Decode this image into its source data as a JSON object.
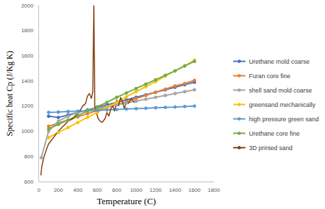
{
  "chart_data": {
    "type": "line",
    "x_label": "Temperature (C)",
    "y_label": "Specific heat Cp (J/Kg K)",
    "xlim": [
      0,
      1800
    ],
    "xticks": [
      0,
      200,
      400,
      600,
      800,
      1000,
      1200,
      1400,
      1600,
      1800
    ],
    "ylim": [
      600,
      2000
    ],
    "yticks": [
      600,
      800,
      1000,
      1200,
      1400,
      1600,
      1800,
      2000
    ],
    "grid": false,
    "legend": "right",
    "series": [
      {
        "name": "Urethane mold coarse",
        "color": "#4472c4",
        "marker": "circle",
        "x": [
          100,
          200,
          300,
          400,
          500,
          600,
          700,
          800,
          900,
          1000,
          1100,
          1200,
          1300,
          1400,
          1500,
          1600
        ],
        "values": [
          1120,
          1110,
          1130,
          1150,
          1170,
          1190,
          1210,
          1230,
          1250,
          1270,
          1290,
          1310,
          1330,
          1350,
          1370,
          1390
        ]
      },
      {
        "name": "Furan core fine",
        "color": "#ed7d31",
        "marker": "circle",
        "x": [
          100,
          200,
          300,
          400,
          500,
          600,
          700,
          800,
          900,
          1000,
          1100,
          1200,
          1300,
          1400,
          1500,
          1600
        ],
        "values": [
          1040,
          1065,
          1090,
          1115,
          1140,
          1165,
          1190,
          1210,
          1235,
          1260,
          1285,
          1310,
          1335,
          1360,
          1380,
          1405
        ]
      },
      {
        "name": "shell sand mold coarse",
        "color": "#a5a5a5",
        "marker": "circle",
        "x": [
          25,
          100,
          200,
          300,
          400,
          500,
          600,
          700,
          800,
          900,
          1000,
          1100,
          1200,
          1300,
          1400,
          1500,
          1600
        ],
        "values": [
          790,
          1000,
          1080,
          1120,
          1150,
          1165,
          1180,
          1195,
          1210,
          1225,
          1240,
          1255,
          1270,
          1285,
          1300,
          1315,
          1330
        ]
      },
      {
        "name": "greensand mechanically",
        "color": "#ffc000",
        "marker": "circle",
        "x": [
          100,
          200,
          300,
          400,
          500,
          600,
          700,
          800,
          900,
          1000,
          1100,
          1200,
          1300,
          1400,
          1500,
          1600
        ],
        "values": [
          950,
          990,
          1030,
          1070,
          1110,
          1150,
          1190,
          1230,
          1275,
          1315,
          1355,
          1395,
          1440,
          1480,
          1520,
          1565
        ]
      },
      {
        "name": "high pressure green sand",
        "color": "#5b9bd5",
        "marker": "circle",
        "x": [
          100,
          200,
          300,
          400,
          500,
          600,
          700,
          800,
          900,
          1000,
          1100,
          1200,
          1300,
          1400,
          1500,
          1600
        ],
        "values": [
          1150,
          1153,
          1157,
          1160,
          1163,
          1167,
          1170,
          1173,
          1177,
          1180,
          1183,
          1187,
          1190,
          1193,
          1197,
          1200
        ]
      },
      {
        "name": "Urethane core fine",
        "color": "#70ad47",
        "marker": "circle",
        "x": [
          100,
          200,
          300,
          400,
          500,
          600,
          700,
          800,
          900,
          1000,
          1100,
          1200,
          1300,
          1400,
          1500,
          1600
        ],
        "values": [
          1020,
          1055,
          1090,
          1125,
          1160,
          1195,
          1230,
          1270,
          1305,
          1340,
          1375,
          1410,
          1445,
          1480,
          1520,
          1555
        ]
      },
      {
        "name": "3D printed sand",
        "color": "#843c0c",
        "marker": "none",
        "x": [
          20,
          30,
          50,
          80,
          100,
          150,
          200,
          250,
          300,
          350,
          380,
          420,
          450,
          480,
          500,
          520,
          540,
          555,
          565,
          575,
          590,
          610,
          630,
          650,
          680,
          700,
          720,
          740,
          760,
          780,
          800,
          820,
          840,
          860,
          880,
          900,
          920,
          950,
          980,
          1000
        ],
        "values": [
          650,
          720,
          790,
          860,
          900,
          950,
          1000,
          1040,
          1080,
          1100,
          1130,
          1160,
          1200,
          1220,
          1280,
          1300,
          1260,
          1320,
          2000,
          1200,
          1150,
          1100,
          1080,
          1070,
          1100,
          1150,
          1120,
          1180,
          1200,
          1160,
          1250,
          1200,
          1270,
          1230,
          1180,
          1250,
          1220,
          1260,
          1230,
          1250
        ]
      }
    ]
  }
}
